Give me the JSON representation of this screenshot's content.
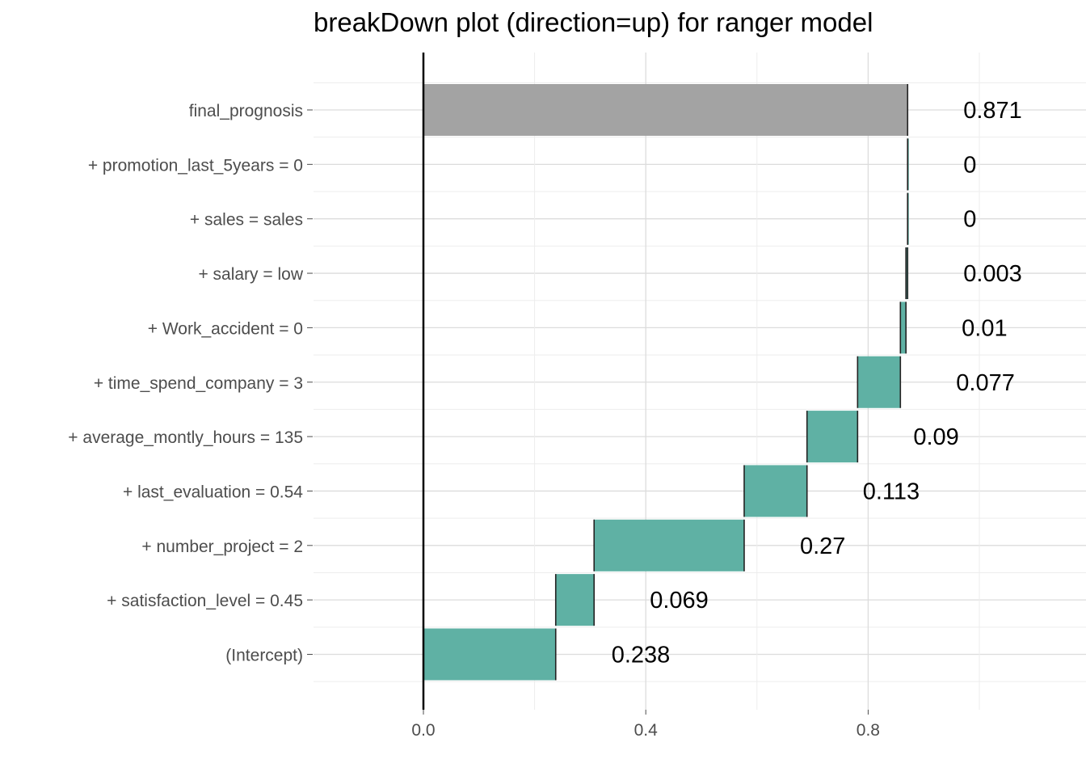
{
  "chart_data": {
    "type": "bar",
    "subtype": "waterfall",
    "title": "breakDown plot (direction=up) for ranger model",
    "xlabel": "",
    "ylabel": "",
    "xlim": [
      -0.2,
      1.13
    ],
    "x_ticks": [
      {
        "value": 0.0,
        "label": "0.0"
      },
      {
        "value": 0.4,
        "label": "0.4"
      },
      {
        "value": 0.8,
        "label": "0.8"
      }
    ],
    "x_minor_gridlines": [
      -0.2,
      0.2,
      0.6,
      1.0
    ],
    "grid": true,
    "colors": {
      "contribution": "#5fb1a4",
      "final": "#a3a3a3",
      "baseline_line": "#000000",
      "grid": "#e5e5e5"
    },
    "rows": [
      {
        "label": "final_prognosis",
        "start": 0.0,
        "end": 0.871,
        "value_label": "0.871",
        "kind": "final"
      },
      {
        "label": "+ promotion_last_5years = 0",
        "start": 0.871,
        "end": 0.871,
        "value_label": "0",
        "kind": "contribution"
      },
      {
        "label": "+ sales = sales",
        "start": 0.871,
        "end": 0.871,
        "value_label": "0",
        "kind": "contribution"
      },
      {
        "label": "+ salary = low",
        "start": 0.868,
        "end": 0.871,
        "value_label": "0.003",
        "kind": "contribution"
      },
      {
        "label": "+ Work_accident = 0",
        "start": 0.858,
        "end": 0.868,
        "value_label": "0.01",
        "kind": "contribution"
      },
      {
        "label": "+ time_spend_company = 3",
        "start": 0.781,
        "end": 0.858,
        "value_label": "0.077",
        "kind": "contribution"
      },
      {
        "label": "+ average_montly_hours = 135",
        "start": 0.69,
        "end": 0.781,
        "value_label": "0.09",
        "kind": "contribution"
      },
      {
        "label": "+ last_evaluation = 0.54",
        "start": 0.577,
        "end": 0.69,
        "value_label": "0.113",
        "kind": "contribution"
      },
      {
        "label": "+ number_project = 2",
        "start": 0.307,
        "end": 0.577,
        "value_label": "0.27",
        "kind": "contribution"
      },
      {
        "label": "+ satisfaction_level = 0.45",
        "start": 0.238,
        "end": 0.307,
        "value_label": "0.069",
        "kind": "contribution"
      },
      {
        "label": "(Intercept)",
        "start": 0.0,
        "end": 0.238,
        "value_label": "0.238",
        "kind": "contribution"
      }
    ]
  }
}
